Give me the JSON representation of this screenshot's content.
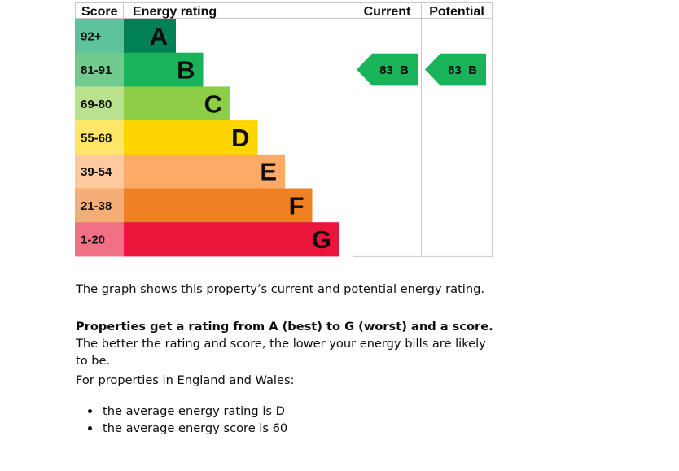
{
  "chart_data": {
    "type": "table",
    "headers": {
      "score": "Score",
      "rating": "Energy rating",
      "current": "Current",
      "potential": "Potential"
    },
    "bands": [
      {
        "letter": "A",
        "range": "92+",
        "color": "#008054",
        "score_color": "#5cc39d"
      },
      {
        "letter": "B",
        "range": "81-91",
        "color": "#19b459",
        "score_color": "#6fcb8e"
      },
      {
        "letter": "C",
        "range": "69-80",
        "color": "#8dce46",
        "score_color": "#b9e18e"
      },
      {
        "letter": "D",
        "range": "55-68",
        "color": "#ffd500",
        "score_color": "#ffe666"
      },
      {
        "letter": "E",
        "range": "39-54",
        "color": "#fcaa65",
        "score_color": "#fdc99f"
      },
      {
        "letter": "F",
        "range": "21-38",
        "color": "#ef8023",
        "score_color": "#f4ae74"
      },
      {
        "letter": "G",
        "range": "1-20",
        "color": "#e9153b",
        "score_color": "#f07086"
      }
    ],
    "current": {
      "score": 83,
      "letter": "B",
      "label": "83  B"
    },
    "potential": {
      "score": 83,
      "letter": "B",
      "label": "83  B"
    }
  },
  "description": {
    "intro": "The graph shows this property’s current and potential energy rating.",
    "rating_bold": "Properties get a rating from A (best) to G (worst) and a score.",
    "rating_rest": " The better the rating and score, the lower your energy bills are likely to be.",
    "region_intro": "For properties in England and Wales:",
    "average_rating": "the average energy rating is D",
    "average_score": "the average energy score is 60"
  }
}
